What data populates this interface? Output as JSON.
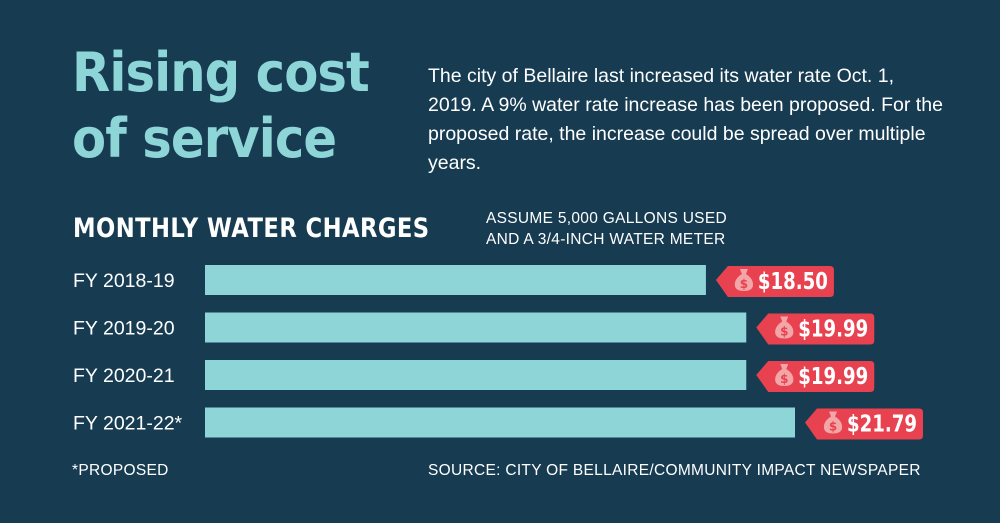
{
  "headline": {
    "title": "Rising cost of service",
    "intro": "The city of Bellaire last increased its water rate Oct. 1, 2019. A 9% water rate increase has been proposed. For the proposed rate, the increase could be spread over multiple years."
  },
  "chart_data": {
    "type": "bar",
    "orientation": "horizontal",
    "title": "MONTHLY WATER CHARGES",
    "subtitle_lines": [
      "ASSUME 5,000 GALLONS USED",
      "AND A 3/4-INCH WATER METER"
    ],
    "categories": [
      "FY 2018-19",
      "FY 2019-20",
      "FY 2020-21",
      "FY 2021-22*"
    ],
    "values": [
      18.5,
      19.99,
      19.99,
      21.79
    ],
    "value_labels": [
      "$18.50",
      "$19.99",
      "$19.99",
      "$21.79"
    ],
    "xlim": [
      0,
      21.79
    ],
    "grid": false,
    "colors": {
      "bar": "#8ed5d8",
      "tag": "#e8414f",
      "icon_fill": "#f3a6a8"
    },
    "icon": "money-bag-icon"
  },
  "footer": {
    "footnote": "*PROPOSED",
    "source": "SOURCE: CITY OF BELLAIRE/COMMUNITY IMPACT NEWSPAPER"
  }
}
